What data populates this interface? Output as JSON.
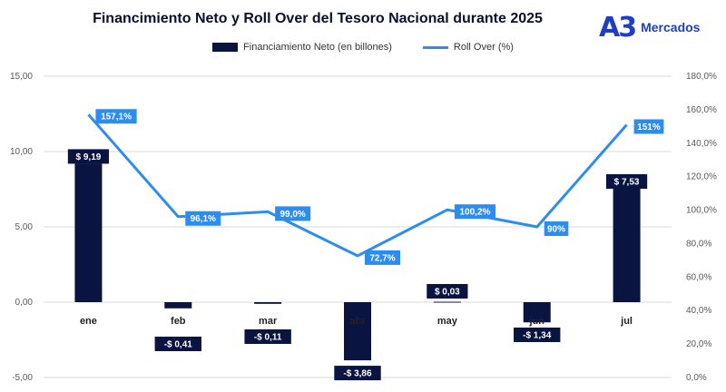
{
  "title": "Financimiento  Neto y Roll Over del Tesoro Nacional durante 2025",
  "logo": {
    "mark": "A3",
    "text": "Mercados"
  },
  "colors": {
    "bar": "#0a1440",
    "line": "#2d8cf0",
    "label_bg_bar": "#0a1440",
    "label_bg_line": "#2d8cf0"
  },
  "chart_data": {
    "type": "bar",
    "categories": [
      "ene",
      "feb",
      "mar",
      "abr",
      "may",
      "jun",
      "jul"
    ],
    "series": [
      {
        "name": "Financiamiento Neto (en billones)",
        "type": "bar",
        "axis": "left",
        "values": [
          9.19,
          -0.41,
          -0.11,
          -3.86,
          0.03,
          -1.34,
          7.53
        ],
        "labels": [
          "$ 9,19",
          "-$ 0,41",
          "-$ 0,11",
          "-$ 3,86",
          "$ 0,03",
          "-$ 1,34",
          "$ 7,53"
        ]
      },
      {
        "name": "Roll Over (%)",
        "type": "line",
        "axis": "right",
        "values": [
          157.1,
          96.1,
          99.0,
          72.7,
          100.2,
          90,
          151
        ],
        "labels": [
          "157,1%",
          "96,1%",
          "99,0%",
          "72,7%",
          "100,2%",
          "90%",
          "151%"
        ]
      }
    ],
    "y_left": {
      "min": -5,
      "max": 15,
      "ticks": [
        "-5,00",
        "0,00",
        "5,00",
        "10,00",
        "15,00"
      ],
      "tick_values": [
        -5,
        0,
        5,
        10,
        15
      ]
    },
    "y_right": {
      "min": 0,
      "max": 180,
      "ticks": [
        "0,0%",
        "20,0%",
        "40,0%",
        "60,0%",
        "80,0%",
        "100,0%",
        "120,0%",
        "140,0%",
        "160,0%",
        "180,0%"
      ],
      "tick_values": [
        0,
        20,
        40,
        60,
        80,
        100,
        120,
        140,
        160,
        180
      ]
    },
    "grid": true,
    "legend_position": "top"
  }
}
